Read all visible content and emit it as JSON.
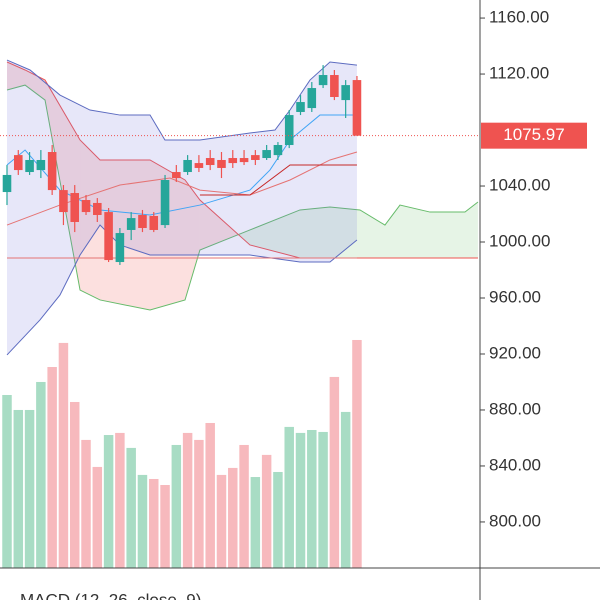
{
  "chart_data": {
    "type": "candlestick",
    "up_color": "#26a69a",
    "down_color": "#ef5350",
    "open": [
      1035.7,
      1062.1,
      1050.0,
      1051.4,
      1064.3,
      1037.1,
      1035.0,
      1030.0,
      1027.9,
      1021.4,
      985.7,
      1008.6,
      1019.3,
      1018.6,
      1012.1,
      1050.0,
      1050.0,
      1056.4,
      1060.0,
      1058.6,
      1060.0,
      1060.0,
      1062.1,
      1060.0,
      1062.1,
      1069.3,
      1092.9,
      1095.7,
      1112.1,
      1119.3,
      1101.4,
      1115.7
    ],
    "high": [
      1055.0,
      1065.7,
      1064.3,
      1065.7,
      1069.3,
      1040.7,
      1040.7,
      1033.6,
      1031.4,
      1024.3,
      1010.0,
      1021.4,
      1022.9,
      1021.4,
      1047.9,
      1055.0,
      1062.1,
      1062.1,
      1065.7,
      1064.3,
      1065.7,
      1065.7,
      1065.7,
      1069.3,
      1071.4,
      1094.3,
      1105.0,
      1114.3,
      1126.4,
      1122.9,
      1115.7,
      1118.6
    ],
    "low": [
      1026.4,
      1047.9,
      1047.9,
      1045.7,
      1033.6,
      1012.1,
      1007.1,
      1019.3,
      1014.3,
      985.7,
      983.6,
      1001.4,
      1007.1,
      1007.1,
      1010.0,
      1042.9,
      1047.9,
      1050.0,
      1051.4,
      1045.7,
      1052.9,
      1055.0,
      1055.0,
      1058.6,
      1058.6,
      1067.1,
      1090.7,
      1092.9,
      1110.0,
      1101.4,
      1088.6,
      1075.97
    ],
    "close": [
      1047.9,
      1051.4,
      1058.6,
      1058.6,
      1037.1,
      1021.4,
      1014.3,
      1021.4,
      1019.3,
      987.1,
      1006.4,
      1017.1,
      1010.0,
      1008.6,
      1044.3,
      1045.7,
      1058.6,
      1052.9,
      1055.0,
      1052.9,
      1056.4,
      1057.1,
      1058.6,
      1065.7,
      1069.3,
      1090.7,
      1100.0,
      1110.0,
      1119.3,
      1103.6,
      1112.1,
      1075.97
    ],
    "volume": [
      890.7,
      880.0,
      880.0,
      900.0,
      910.7,
      927.9,
      885.7,
      858.6,
      839.3,
      862.1,
      863.6,
      852.9,
      833.6,
      830.7,
      826.4,
      855.0,
      863.6,
      858.6,
      870.7,
      833.6,
      838.6,
      855.0,
      832.1,
      847.9,
      835.7,
      867.9,
      863.6,
      865.7,
      864.3,
      903.6,
      878.6,
      930.0
    ],
    "volume_colors": [
      "#a8dcc4",
      "#a8dcc4",
      "#a8dcc4",
      "#a8dcc4",
      "#f7b9bd",
      "#f7b9bd",
      "#f7b9bd",
      "#f7b9bd",
      "#f7b9bd",
      "#a8dcc4",
      "#f7b9bd",
      "#a8dcc4",
      "#a8dcc4",
      "#f7b9bd",
      "#f7b9bd",
      "#a8dcc4",
      "#f7b9bd",
      "#f7b9bd",
      "#f7b9bd",
      "#f7b9bd",
      "#f7b9bd",
      "#f7b9bd",
      "#a8dcc4",
      "#f7b9bd",
      "#a8dcc4",
      "#a8dcc4",
      "#a8dcc4",
      "#a8dcc4",
      "#a8dcc4",
      "#f7b9bd",
      "#a8dcc4",
      "#f7b9bd"
    ],
    "series": [
      {
        "color": "#5c6bc0",
        "x": [
          0,
          2.04,
          4.69,
          7.35,
          10.01,
          12.67,
          13.99,
          17.09,
          21.52,
          23.74,
          25.07,
          26.84,
          28.61,
          31
        ],
        "values": [
          1130.0,
          1122.9,
          1105.0,
          1094.3,
          1090.7,
          1090.7,
          1072.9,
          1072.9,
          1077.9,
          1080.0,
          1094.3,
          1115.7,
          1128.6,
          1126.4
        ]
      },
      {
        "color": "#5c6bc0",
        "x": [
          0,
          2.92,
          4.69,
          6.47,
          8.24,
          10.01,
          12.67,
          17.09,
          21.52,
          25.95,
          28.61,
          31
        ],
        "values": [
          919.3,
          944.3,
          962.1,
          990.7,
          1012.1,
          997.9,
          990.7,
          990.7,
          990.7,
          985.7,
          985.7,
          1001.4
        ]
      },
      {
        "color": "#42a5f5",
        "x": [
          0,
          1.6,
          4.69,
          8.24,
          12.67,
          17.09,
          21.52,
          23.29,
          25.07,
          27.72,
          31
        ],
        "values": [
          1055.0,
          1065.7,
          1037.1,
          1022.9,
          1019.3,
          1026.4,
          1037.1,
          1051.4,
          1072.9,
          1090.7,
          1090.7
        ]
      },
      {
        "color": "#e57373",
        "x": [
          0,
          4.69,
          10.01,
          14.44,
          17.09,
          21.52,
          25.07,
          28.61,
          31
        ],
        "values": [
          1012.1,
          1026.4,
          1040.7,
          1045.7,
          1037.1,
          1033.6,
          1044.3,
          1058.6,
          1064.3
        ]
      },
      {
        "color": "#c62828",
        "x": [
          17.09,
          21.52,
          25.07,
          31
        ],
        "values": [
          1033.6,
          1033.6,
          1055.0,
          1055.0
        ]
      },
      {
        "color": "#e57373",
        "x": [
          0,
          31
        ],
        "values": [
          988.6,
          988.6
        ]
      }
    ],
    "band_fill": {
      "between": [
        0,
        1
      ],
      "color": "rgba(120,123,220,0.18)"
    },
    "cloud": {
      "x": [
        0,
        1.6,
        3.37,
        6.47,
        8.24,
        12.67,
        15.77,
        17.09,
        21.52,
        25.95,
        28.61,
        31.27,
        33.48,
        34.81,
        37.47,
        40.57,
        41.72
      ],
      "span_a": [
        1108.6,
        1112.1,
        1101.4,
        965.7,
        958.6,
        951.4,
        958.6,
        994.3,
        1008.6,
        1022.9,
        1025.0,
        1022.9,
        1012.1,
        1026.4,
        1021.4,
        1021.4,
        1028.6
      ],
      "span_b": [
        1128.6,
        1122.9,
        1115.7,
        1072.9,
        1058.6,
        1058.6,
        1044.3,
        1030.0,
        997.9,
        988.6,
        988.6,
        988.6,
        988.6,
        988.6,
        988.6,
        988.6,
        988.6
      ],
      "color_a": "#66bb6a",
      "color_b": "#ef5350",
      "up_fill": "rgba(76,175,80,0.14)",
      "down_fill": "rgba(239,83,80,0.18)"
    },
    "last_price": 1075.97,
    "xlim": [
      -0.62,
      41.9
    ],
    "ylim": [
      767.1,
      1172.9
    ],
    "yticks": [
      {
        "value": 800,
        "label": "800.00"
      },
      {
        "value": 840,
        "label": "840.00"
      },
      {
        "value": 880,
        "label": "880.00"
      },
      {
        "value": 920,
        "label": "920.00"
      },
      {
        "value": 960,
        "label": "960.00"
      },
      {
        "value": 1000,
        "label": "1000.00"
      },
      {
        "value": 1040,
        "label": "1040.00"
      },
      {
        "value": 1120,
        "label": "1120.00"
      },
      {
        "value": 1160,
        "label": "1160.00"
      }
    ],
    "indicator_title": "MACD (12, 26, close, 9)"
  }
}
